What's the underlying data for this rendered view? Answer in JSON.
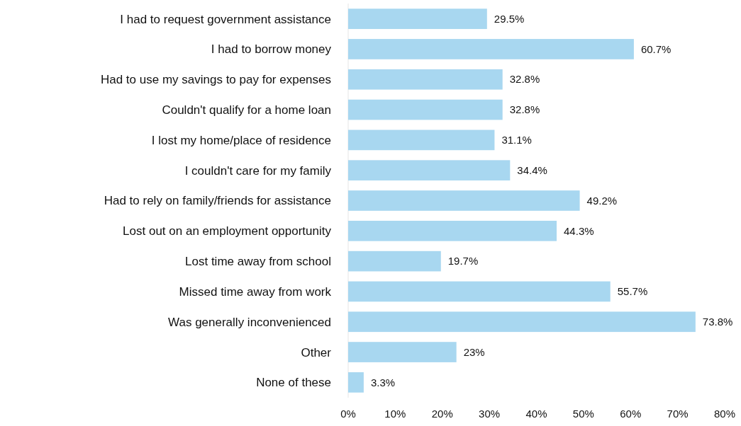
{
  "chart_data": {
    "type": "bar",
    "orientation": "horizontal",
    "categories": [
      "I had to request government assistance",
      "I had to borrow money",
      "Had to use my savings to pay for expenses",
      "Couldn't qualify for a home loan",
      "I lost my home/place of residence",
      "I couldn't care for my family",
      "Had to rely on family/friends for assistance",
      "Lost out on an employment opportunity",
      "Lost time away from school",
      "Missed time away from work",
      "Was generally inconvenienced",
      "Other",
      "None of these"
    ],
    "values": [
      29.5,
      60.7,
      32.8,
      32.8,
      31.1,
      34.4,
      49.2,
      44.3,
      19.7,
      55.7,
      73.8,
      23,
      3.3
    ],
    "value_labels": [
      "29.5%",
      "60.7%",
      "32.8%",
      "32.8%",
      "31.1%",
      "34.4%",
      "49.2%",
      "44.3%",
      "19.7%",
      "55.7%",
      "73.8%",
      "23%",
      "3.3%"
    ],
    "color": "#a8d7f0",
    "xlim": [
      0,
      80
    ],
    "xticks": [
      {
        "value": 0,
        "label": "0%"
      },
      {
        "value": 10,
        "label": "10%"
      },
      {
        "value": 20,
        "label": "20%"
      },
      {
        "value": 30,
        "label": "30%"
      },
      {
        "value": 40,
        "label": "40%"
      },
      {
        "value": 50,
        "label": "50%"
      },
      {
        "value": 60,
        "label": "60%"
      },
      {
        "value": 70,
        "label": "70%"
      },
      {
        "value": 80,
        "label": "80%"
      }
    ],
    "grid": false
  }
}
